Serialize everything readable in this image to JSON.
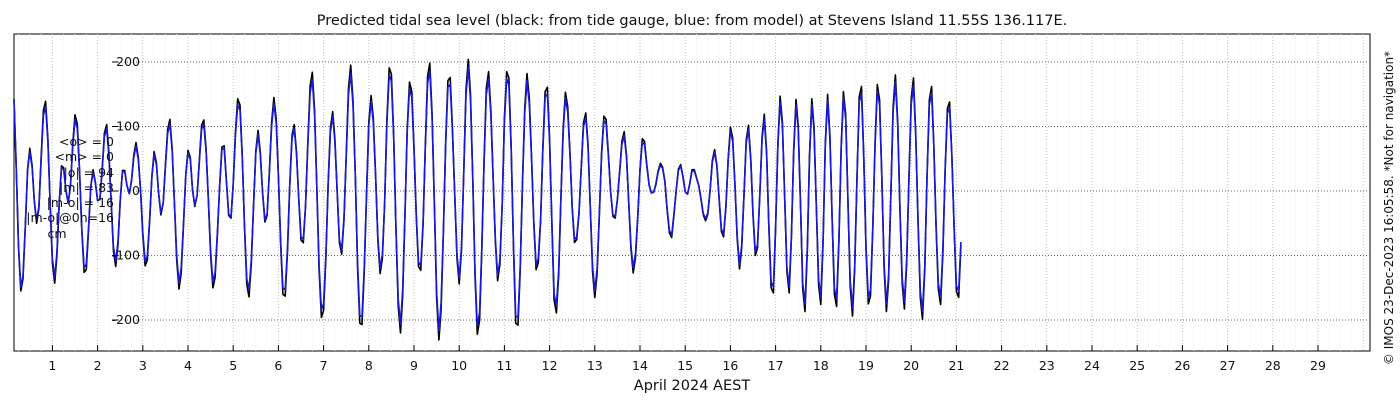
{
  "chart_data": {
    "type": "line",
    "title": "Predicted tidal sea level (black: from tide gauge, blue: from model) at Stevens Island 11.55S 136.117E.",
    "xlabel": "April 2024 AEST",
    "ylabel": "",
    "xlim": [
      0.15,
      30.15
    ],
    "ylim": [
      -238,
      225
    ],
    "x_ticks": [
      1,
      2,
      3,
      4,
      5,
      6,
      7,
      8,
      9,
      10,
      11,
      12,
      13,
      14,
      15,
      16,
      17,
      18,
      19,
      20,
      21,
      22,
      23,
      24,
      25,
      26,
      27,
      28,
      29
    ],
    "y_ticks": [
      -200,
      -100,
      0,
      100,
      200
    ],
    "grid": true,
    "sample_step_days": 0.05,
    "series": [
      {
        "name": "tide gauge",
        "color": "#000000",
        "values": [
          142,
          33,
          -87,
          -155,
          -136,
          -56,
          34,
          66,
          40,
          -16,
          -50,
          -27,
          51,
          125,
          139,
          81,
          -23,
          -112,
          -143,
          -101,
          -20,
          39,
          36,
          0,
          -19,
          8,
          74,
          118,
          104,
          34,
          -61,
          -126,
          -122,
          -59,
          7,
          33,
          13,
          -15,
          -13,
          32,
          90,
          103,
          59,
          -18,
          -92,
          -117,
          -83,
          -16,
          32,
          32,
          8,
          -4,
          16,
          56,
          75,
          52,
          0,
          -69,
          -116,
          -107,
          -48,
          23,
          61,
          44,
          -3,
          -37,
          -19,
          40,
          96,
          111,
          65,
          -22,
          -107,
          -152,
          -127,
          -53,
          26,
          63,
          52,
          2,
          -24,
          -7,
          47,
          102,
          110,
          65,
          -15,
          -99,
          -150,
          -134,
          -68,
          10,
          68,
          70,
          16,
          -38,
          -42,
          11,
          93,
          143,
          133,
          53,
          -56,
          -145,
          -164,
          -113,
          -21,
          62,
          94,
          60,
          -3,
          -48,
          -38,
          31,
          106,
          145,
          112,
          24,
          -84,
          -160,
          -163,
          -94,
          7,
          86,
          103,
          61,
          -14,
          -76,
          -80,
          -25,
          74,
          162,
          184,
          125,
          7,
          -123,
          -196,
          -185,
          -104,
          9,
          98,
          123,
          81,
          -2,
          -80,
          -98,
          -44,
          55,
          160,
          195,
          141,
          25,
          -115,
          -205,
          -207,
          -123,
          -2,
          107,
          148,
          113,
          24,
          -78,
          -128,
          -104,
          -21,
          111,
          191,
          181,
          86,
          -56,
          -178,
          -220,
          -162,
          -36,
          97,
          169,
          154,
          68,
          -40,
          -117,
          -123,
          -51,
          70,
          178,
          198,
          119,
          -23,
          -165,
          -231,
          -184,
          -64,
          78,
          171,
          176,
          99,
          -4,
          -105,
          -144,
          -92,
          26,
          158,
          204,
          150,
          18,
          -131,
          -222,
          -200,
          -93,
          49,
          159,
          185,
          124,
          22,
          -80,
          -139,
          -114,
          -21,
          113,
          185,
          175,
          67,
          -89,
          -205,
          -208,
          -124,
          14,
          130,
          182,
          144,
          55,
          -50,
          -122,
          -111,
          -47,
          65,
          154,
          161,
          80,
          -52,
          -169,
          -189,
          -130,
          -12,
          98,
          153,
          131,
          58,
          -27,
          -80,
          -75,
          -35,
          39,
          106,
          121,
          73,
          -27,
          -126,
          -165,
          -128,
          -39,
          60,
          116,
          111,
          57,
          -1,
          -39,
          -42,
          -14,
          32,
          77,
          92,
          55,
          -17,
          -91,
          -127,
          -103,
          -40,
          34,
          81,
          77,
          41,
          10,
          -3,
          -2,
          10,
          31,
          43,
          37,
          15,
          -29,
          -65,
          -72,
          -38,
          1,
          34,
          41,
          22,
          -1,
          -5,
          11,
          33,
          33,
          21,
          8,
          -13,
          -37,
          -46,
          -36,
          1,
          47,
          64,
          40,
          -12,
          -63,
          -71,
          -25,
          51,
          99,
          82,
          12,
          -74,
          -121,
          -89,
          -6,
          79,
          102,
          49,
          -37,
          -100,
          -88,
          -6,
          85,
          119,
          61,
          -53,
          -150,
          -158,
          -58,
          74,
          147,
          107,
          -11,
          -125,
          -158,
          -73,
          64,
          142,
          102,
          -20,
          -151,
          -187,
          -94,
          55,
          143,
          100,
          -22,
          -146,
          -176,
          -79,
          74,
          150,
          87,
          -42,
          -160,
          -179,
          -80,
          70,
          154,
          118,
          -14,
          -148,
          -194,
          -122,
          21,
          146,
          162,
          52,
          -90,
          -175,
          -163,
          -59,
          77,
          165,
          141,
          23,
          -120,
          -187,
          -138,
          -3,
          130,
          180,
          108,
          -26,
          -144,
          -183,
          -112,
          23,
          143,
          175,
          91,
          -46,
          -165,
          -199,
          -122,
          21,
          141,
          162,
          73,
          -57,
          -152,
          -176,
          -96,
          32,
          128,
          138,
          54,
          -62,
          -156,
          -165,
          -84
        ]
      },
      {
        "name": "model",
        "color": "#1a1ad6",
        "values": [
          142,
          34,
          -84,
          -149,
          -131,
          -54,
          32,
          61,
          37,
          -15,
          -45,
          -24,
          47,
          117,
          131,
          76,
          -22,
          -105,
          -134,
          -95,
          -19,
          36,
          33,
          0,
          -18,
          8,
          70,
          110,
          97,
          31,
          -58,
          -118,
          -114,
          -55,
          7,
          30,
          12,
          -14,
          -13,
          30,
          84,
          97,
          55,
          -17,
          -86,
          -109,
          -78,
          -15,
          30,
          30,
          8,
          -4,
          15,
          52,
          70,
          48,
          0,
          -64,
          -109,
          -101,
          -45,
          22,
          57,
          41,
          -3,
          -35,
          -18,
          37,
          90,
          104,
          61,
          -21,
          -100,
          -143,
          -119,
          -50,
          25,
          59,
          49,
          2,
          -22,
          -7,
          44,
          96,
          103,
          61,
          -14,
          -93,
          -141,
          -126,
          -64,
          9,
          64,
          66,
          15,
          -36,
          -40,
          10,
          87,
          134,
          125,
          50,
          -53,
          -136,
          -154,
          -106,
          -20,
          58,
          88,
          56,
          -3,
          -45,
          -36,
          29,
          100,
          136,
          105,
          23,
          -79,
          -150,
          -153,
          -88,
          7,
          81,
          97,
          57,
          -13,
          -71,
          -75,
          -24,
          70,
          152,
          173,
          118,
          7,
          -116,
          -184,
          -174,
          -98,
          8,
          92,
          116,
          76,
          -2,
          -75,
          -92,
          -41,
          52,
          150,
          183,
          133,
          24,
          -108,
          -193,
          -195,
          -116,
          -2,
          101,
          139,
          106,
          23,
          -73,
          -120,
          -98,
          -20,
          104,
          180,
          170,
          81,
          -53,
          -167,
          -207,
          -152,
          -34,
          91,
          159,
          145,
          64,
          -38,
          -110,
          -116,
          -48,
          66,
          167,
          186,
          112,
          -22,
          -155,
          -217,
          -173,
          -60,
          73,
          161,
          165,
          93,
          -4,
          -99,
          -135,
          -86,
          24,
          149,
          192,
          141,
          17,
          -123,
          -209,
          -188,
          -87,
          46,
          149,
          174,
          117,
          21,
          -75,
          -131,
          -107,
          -20,
          106,
          174,
          164,
          63,
          -84,
          -193,
          -196,
          -117,
          13,
          122,
          171,
          135,
          52,
          -47,
          -115,
          -104,
          -44,
          61,
          145,
          151,
          75,
          -49,
          -159,
          -178,
          -122,
          -11,
          92,
          144,
          123,
          55,
          -25,
          -75,
          -71,
          -33,
          37,
          100,
          114,
          69,
          -25,
          -118,
          -155,
          -120,
          -37,
          56,
          109,
          104,
          54,
          -1,
          -37,
          -39,
          -13,
          30,
          72,
          86,
          52,
          -16,
          -86,
          -119,
          -97,
          -38,
          32,
          76,
          72,
          39,
          9,
          -3,
          -2,
          9,
          29,
          40,
          35,
          14,
          -27,
          -61,
          -68,
          -36,
          1,
          32,
          39,
          21,
          -1,
          -5,
          10,
          31,
          31,
          20,
          8,
          -12,
          -35,
          -43,
          -34,
          1,
          44,
          60,
          38,
          -11,
          -59,
          -67,
          -24,
          48,
          93,
          77,
          11,
          -70,
          -114,
          -84,
          -6,
          74,
          96,
          46,
          -35,
          -94,
          -83,
          -6,
          80,
          112,
          57,
          -50,
          -141,
          -149,
          -55,
          70,
          138,
          101,
          -10,
          -118,
          -149,
          -69,
          60,
          133,
          96,
          -19,
          -142,
          -176,
          -88,
          52,
          134,
          94,
          -21,
          -137,
          -165,
          -74,
          70,
          141,
          82,
          -39,
          -150,
          -168,
          -75,
          66,
          145,
          111,
          -13,
          -139,
          -182,
          -115,
          20,
          137,
          152,
          49,
          -85,
          -165,
          -153,
          -55,
          72,
          155,
          133,
          22,
          -113,
          -176,
          -130,
          -3,
          122,
          169,
          102,
          -24,
          -135,
          -172,
          -105,
          22,
          134,
          164,
          86,
          -43,
          -155,
          -187,
          -115,
          20,
          133,
          152,
          69,
          -54,
          -143,
          -165,
          -90,
          30,
          120,
          130,
          51,
          -58,
          -147,
          -155,
          -79
        ]
      }
    ],
    "stats": [
      "<o> = 0",
      "<m> = 0",
      "|o| = 94",
      "|m| = 83",
      "|m-o| = 16",
      "|m-o|@0h=16",
      "cm"
    ],
    "credit": "© IMOS 23-Dec-2023 16:05:58. *Not for navigation*"
  }
}
